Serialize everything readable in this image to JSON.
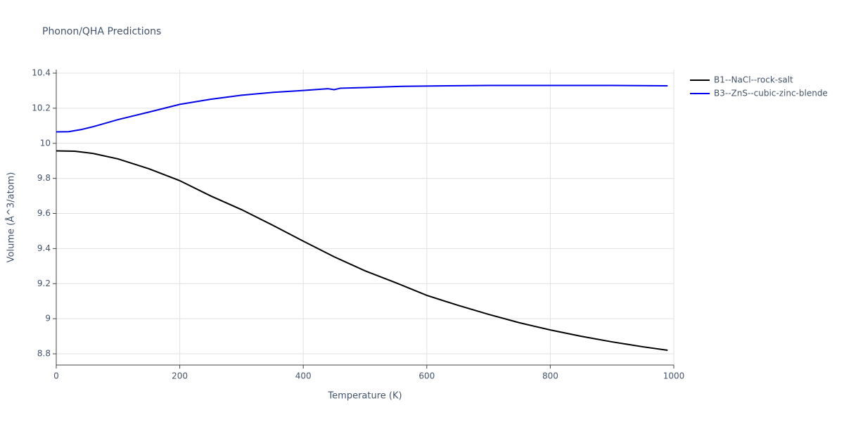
{
  "chart_data": {
    "type": "line",
    "title": "Phonon/QHA Predictions",
    "x_label": "Temperature (K)",
    "y_label": "Volume (Å^3/atom)",
    "xlim": [
      0,
      1000
    ],
    "ylim": [
      8.736,
      10.42
    ],
    "xticks": [
      0,
      200,
      400,
      600,
      800,
      1000
    ],
    "yticks": [
      8.8,
      9,
      9.2,
      9.4,
      9.6,
      9.8,
      10,
      10.2,
      10.4
    ],
    "grid": true,
    "legend": "outside-top-right",
    "series": [
      {
        "name": "B1--NaCl--rock-salt",
        "color": "#000000",
        "x": [
          0,
          30,
          60,
          100,
          150,
          200,
          250,
          300,
          350,
          400,
          450,
          500,
          550,
          600,
          650,
          700,
          750,
          800,
          850,
          900,
          950,
          990
        ],
        "values": [
          9.957,
          9.955,
          9.942,
          9.911,
          9.855,
          9.787,
          9.7,
          9.622,
          9.534,
          9.442,
          9.353,
          9.273,
          9.205,
          9.133,
          9.077,
          9.025,
          8.977,
          8.936,
          8.9,
          8.868,
          8.84,
          8.82
        ]
      },
      {
        "name": "B3--ZnS--cubic-zinc-blende",
        "color": "#0000ee",
        "x": [
          0,
          20,
          40,
          60,
          100,
          150,
          200,
          250,
          300,
          350,
          400,
          440,
          450,
          460,
          500,
          560,
          700,
          800,
          900,
          990
        ],
        "values": [
          10.065,
          10.066,
          10.078,
          10.095,
          10.135,
          10.178,
          10.222,
          10.251,
          10.274,
          10.29,
          10.301,
          10.311,
          10.306,
          10.314,
          10.318,
          10.325,
          10.33,
          10.33,
          10.33,
          10.328
        ]
      }
    ]
  }
}
